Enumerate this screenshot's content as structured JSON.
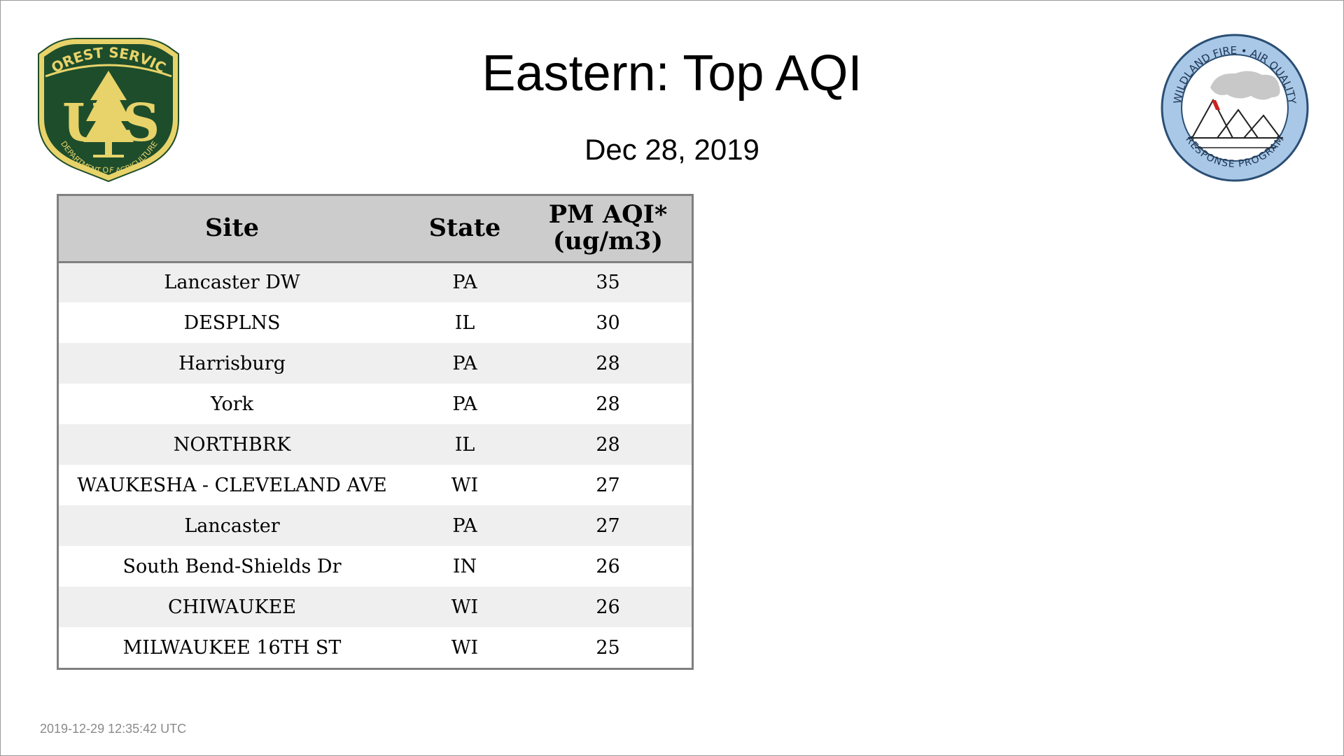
{
  "title": "Eastern: Top AQI",
  "date": "Dec 28, 2019",
  "timestamp": "2019-12-29 12:35:42 UTC",
  "logos": {
    "left": {
      "icon": "forest-service-shield-icon",
      "top_text": "FOREST SERVICE",
      "letters": "U S",
      "bottom_text": "DEPARTMENT OF AGRICULTURE",
      "colors": {
        "shield": "#1e4d2b",
        "gold": "#e8d36a"
      }
    },
    "right": {
      "icon": "wildland-fire-air-quality-seal-icon",
      "top_text": "WILDLAND FIRE • AIR QUALITY",
      "bottom_text": "RESPONSE PROGRAM",
      "colors": {
        "ring": "#a9c8e8",
        "smoke": "#c8c8c8",
        "flame": "#cc2222"
      }
    }
  },
  "table": {
    "headers": {
      "site": "Site",
      "state": "State",
      "aqi_line1": "PM AQI*",
      "aqi_line2": "(ug/m3)"
    },
    "rows": [
      {
        "site": "Lancaster DW",
        "state": "PA",
        "aqi": "35"
      },
      {
        "site": "DESPLNS",
        "state": "IL",
        "aqi": "30"
      },
      {
        "site": "Harrisburg",
        "state": "PA",
        "aqi": "28"
      },
      {
        "site": "York",
        "state": "PA",
        "aqi": "28"
      },
      {
        "site": "NORTHBRK",
        "state": "IL",
        "aqi": "28"
      },
      {
        "site": "WAUKESHA - CLEVELAND AVE",
        "state": "WI",
        "aqi": "27"
      },
      {
        "site": "Lancaster",
        "state": "PA",
        "aqi": "27"
      },
      {
        "site": "South Bend-Shields Dr",
        "state": "IN",
        "aqi": "26"
      },
      {
        "site": "CHIWAUKEE",
        "state": "WI",
        "aqi": "26"
      },
      {
        "site": "MILWAUKEE 16TH ST",
        "state": "WI",
        "aqi": "25"
      }
    ]
  }
}
